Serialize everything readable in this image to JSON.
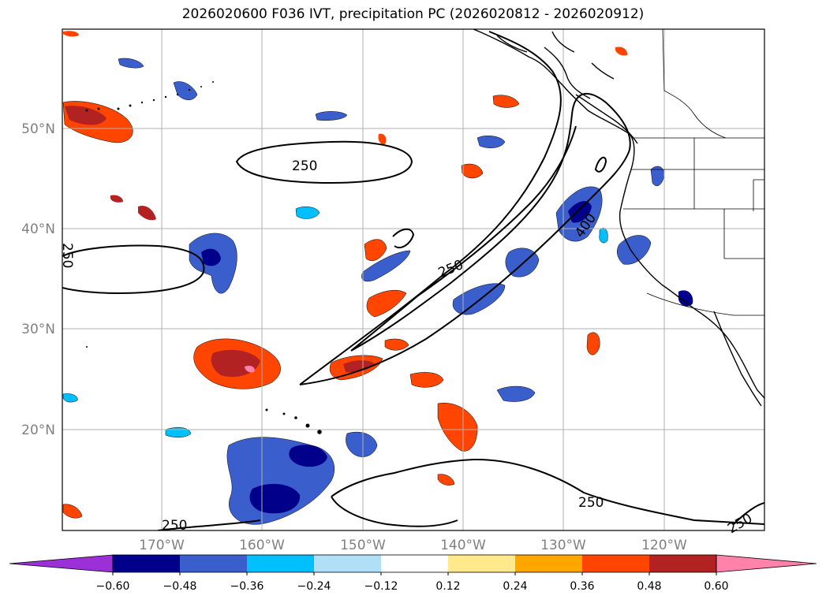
{
  "title": "2026020600 F036 IVT, precipitation PC (2026020812 - 2026020912)",
  "map": {
    "lat_labels": [
      "50°N",
      "40°N",
      "30°N",
      "20°N"
    ],
    "lon_labels": [
      "170°W",
      "160°W",
      "150°W",
      "140°W",
      "130°W",
      "120°W"
    ],
    "grid": true,
    "extent": {
      "lon_min": -180,
      "lon_max": -110,
      "lat_min": 10,
      "lat_max": 60
    },
    "contour_labels": [
      "250",
      "250",
      "250",
      "250",
      "250",
      "400",
      "250"
    ],
    "label_color": "#808080"
  },
  "colorbar": {
    "ticks": [
      "−0.60",
      "−0.48",
      "−0.36",
      "−0.24",
      "−0.12",
      "0.12",
      "0.24",
      "0.36",
      "0.48",
      "0.60"
    ],
    "colors": [
      "#9b30d9",
      "#00008b",
      "#3a5fcd",
      "#00bfff",
      "#b0e0f8",
      "#ffffff",
      "#ffe98c",
      "#ffa500",
      "#ff4500",
      "#b22222",
      "#ff82ab"
    ]
  }
}
